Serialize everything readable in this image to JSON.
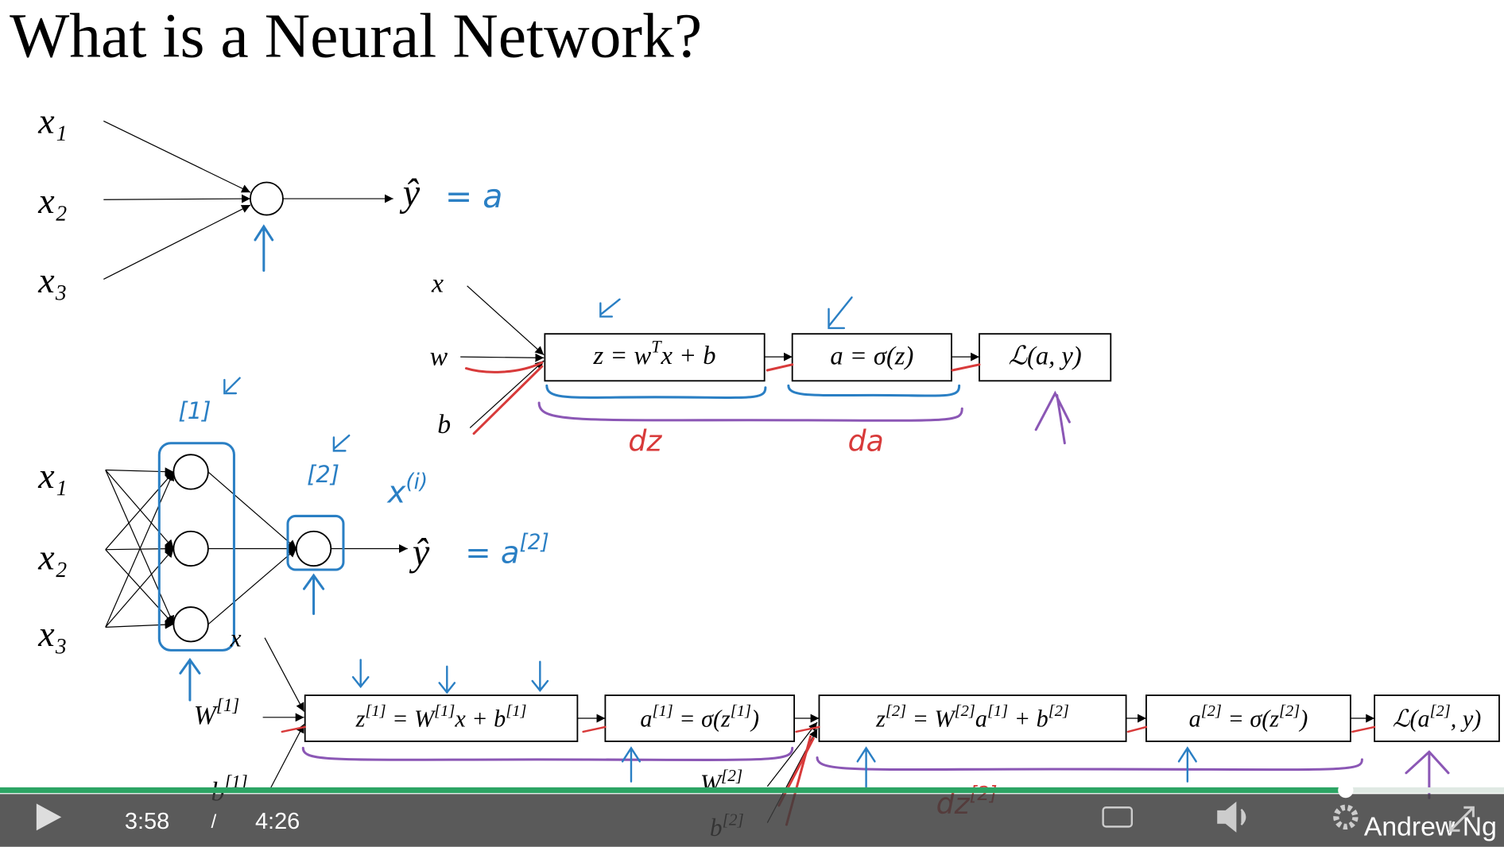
{
  "slide": {
    "title": "What is a Neural Network?",
    "top_network": {
      "inputs": [
        "x₁",
        "x₂",
        "x₃"
      ],
      "output": "ŷ",
      "output_annotation": "= a"
    },
    "logistic_graph": {
      "inputs": [
        "x",
        "w",
        "b"
      ],
      "boxes": [
        [
          "z = w",
          "T",
          "x + b"
        ],
        "a = σ(z)",
        "ℒ(a, y)"
      ],
      "annotations": [
        "dz",
        "da"
      ]
    },
    "two_layer_network": {
      "inputs": [
        "x₁",
        "x₂",
        "x₃"
      ],
      "output": "ŷ",
      "output_annotation": [
        "= a",
        "[2]"
      ],
      "layer_labels": [
        "[1]",
        "[2]"
      ],
      "sample_label": [
        "x",
        "(i)"
      ]
    },
    "two_layer_graph": {
      "inputs": [
        [
          "W",
          "[1]"
        ],
        [
          "b",
          "[1]"
        ],
        "x"
      ],
      "second_inputs": [
        [
          "W",
          "[2]"
        ],
        [
          "b",
          "[2]"
        ]
      ],
      "boxes": [
        [
          "z",
          "[1]",
          " = W",
          "[1]",
          "x + b",
          "[1]"
        ],
        [
          "a",
          "[1]",
          " = σ(z",
          "[1]",
          ")"
        ],
        [
          "z",
          "[2]",
          " = W",
          "[2]",
          "a",
          "[1]",
          " + b",
          "[2]"
        ],
        [
          "a",
          "[2]",
          " = σ(z",
          "[2]",
          ")"
        ],
        [
          "ℒ(a",
          "[2]",
          ", y)"
        ]
      ],
      "annotations": [
        [
          "dz",
          "[2]"
        ]
      ]
    }
  },
  "player": {
    "elapsed": "3:58",
    "separator": "/",
    "duration": "4:26",
    "watermark": "Andrew Ng"
  }
}
